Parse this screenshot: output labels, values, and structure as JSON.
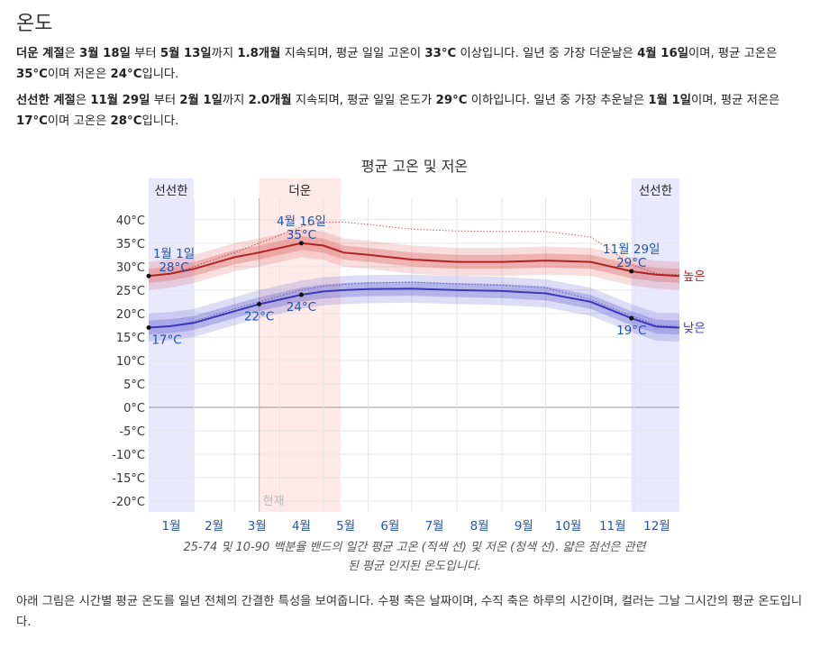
{
  "title": "온도",
  "hot_para": {
    "a": "더운 계절",
    "b": "은 ",
    "c": "3월 18일",
    "d": " 부터 ",
    "e": "5월 13일",
    "f": "까지 ",
    "g": "1.8개월",
    "h": " 지속되며, 평균 일일 고온이 ",
    "i": "33°C",
    "j": " 이상입니다. 일년 중 가장 더운날은 ",
    "k": "4월 16일",
    "l": "이며, 평균 고온은 ",
    "m": "35°C",
    "n": "이며 저온은 ",
    "o": "24°C",
    "p": "입니다."
  },
  "cold_para": {
    "a": "선선한 계절",
    "b": "은 ",
    "c": "11월 29일",
    "d": " 부터 ",
    "e": "2월 1일",
    "f": "까지 ",
    "g": "2.0개월",
    "h": " 지속되며, 평균 일일 온도가 ",
    "i": "29°C",
    "j": " 이하입니다. 일년 중 가장 추운날은 ",
    "k": "1월 1일",
    "l": "이며, 평균 저온은 ",
    "m": "17°C",
    "n": "이며 고온은 ",
    "o": "28°C",
    "p": "입니다."
  },
  "caption_1": "25-74 및 10-90 백분율 밴드의 일간 평균 고온 (적색 선) 및 저온 (청색 선). 얇은 점선은 관련",
  "caption_2": "된 평균 인지된 온도입니다.",
  "footer": "아래 그림은 시간별 평균 온도를 일년 전체의 간결한 특성을 보여줍니다. 수평 축은 날짜이며, 수직 축은 하루의 시간이며, 컬러는 그날 그시간의 평균 온도입니다.",
  "chart_data": {
    "type": "line",
    "title": "평균 고온 및 저온",
    "ylim": [
      -22.3,
      48.8
    ],
    "yticks": [
      "40°C",
      "35°C",
      "30°C",
      "25°C",
      "20°C",
      "15°C",
      "10°C",
      "5°C",
      "0°C",
      "-5°C",
      "-10°C",
      "-15°C",
      "-20°C"
    ],
    "ytick_values": [
      40,
      35,
      30,
      25,
      20,
      15,
      10,
      5,
      0,
      -5,
      -10,
      -15,
      -20
    ],
    "months": [
      "1월",
      "2월",
      "3월",
      "4월",
      "5월",
      "6월",
      "7월",
      "8월",
      "9월",
      "10월",
      "11월",
      "12월"
    ],
    "seasons": [
      {
        "label": "선선한",
        "start_day": 0,
        "end_day": 31,
        "color": "#e8e8ff"
      },
      {
        "label": "더운",
        "start_day": 76,
        "end_day": 132,
        "color": "#ffe9e9"
      },
      {
        "label": "선선한",
        "start_day": 332,
        "end_day": 365,
        "color": "#e8e8ff"
      }
    ],
    "now_label": "현재",
    "now_day": 76,
    "series": [
      {
        "name": "높은",
        "color": "#b22222",
        "band_color": "#d9534f",
        "x": [
          0,
          15,
          31,
          59,
          76,
          105,
          120,
          134,
          151,
          181,
          212,
          243,
          273,
          304,
          332,
          349,
          365
        ],
        "values": [
          28,
          28.5,
          29.5,
          32,
          33,
          35,
          34.5,
          33,
          32.5,
          31.5,
          31,
          31,
          31.3,
          31,
          29,
          28.3,
          28
        ],
        "feels_like": [
          28,
          28.5,
          30,
          33,
          35,
          38.5,
          39.5,
          39.5,
          39,
          38,
          37.6,
          37.5,
          37.5,
          36.3,
          30.5,
          28.5,
          28.3
        ]
      },
      {
        "name": "낮은",
        "color": "#3a3ab8",
        "band_color": "#5555cc",
        "x": [
          0,
          15,
          31,
          59,
          76,
          105,
          120,
          134,
          151,
          181,
          212,
          243,
          273,
          304,
          332,
          349,
          365
        ],
        "values": [
          17,
          17.3,
          18,
          20.5,
          22,
          24,
          24.7,
          25,
          25.2,
          25.3,
          25,
          24.8,
          24.3,
          22.5,
          19,
          17.2,
          17
        ],
        "feels_like": [
          17,
          17.3,
          18.3,
          21,
          22.5,
          25,
          25.8,
          26.2,
          26.5,
          26.7,
          26.3,
          26,
          25.5,
          23,
          19.5,
          17.5,
          17.2
        ]
      }
    ],
    "band_25_75": 1.5,
    "band_10_90": 3,
    "annotations": [
      {
        "series": "높은",
        "day": 0,
        "date": "1월 1일",
        "value": "28°C",
        "v": 28,
        "pos": "above"
      },
      {
        "series": "높은",
        "day": 105,
        "date": "4월 16일",
        "value": "35°C",
        "v": 35,
        "pos": "above"
      },
      {
        "series": "높은",
        "day": 332,
        "date": "11월 29일",
        "value": "29°C",
        "v": 29,
        "pos": "above"
      },
      {
        "series": "낮은",
        "day": 0,
        "date": "",
        "value": "17°C",
        "v": 17,
        "pos": "below"
      },
      {
        "series": "낮은",
        "day": 76,
        "date": "",
        "value": "22°C",
        "v": 22,
        "pos": "below"
      },
      {
        "series": "낮은",
        "day": 105,
        "date": "",
        "value": "24°C",
        "v": 24,
        "pos": "below"
      },
      {
        "series": "낮은",
        "day": 332,
        "date": "",
        "value": "19°C",
        "v": 19,
        "pos": "below"
      }
    ]
  }
}
